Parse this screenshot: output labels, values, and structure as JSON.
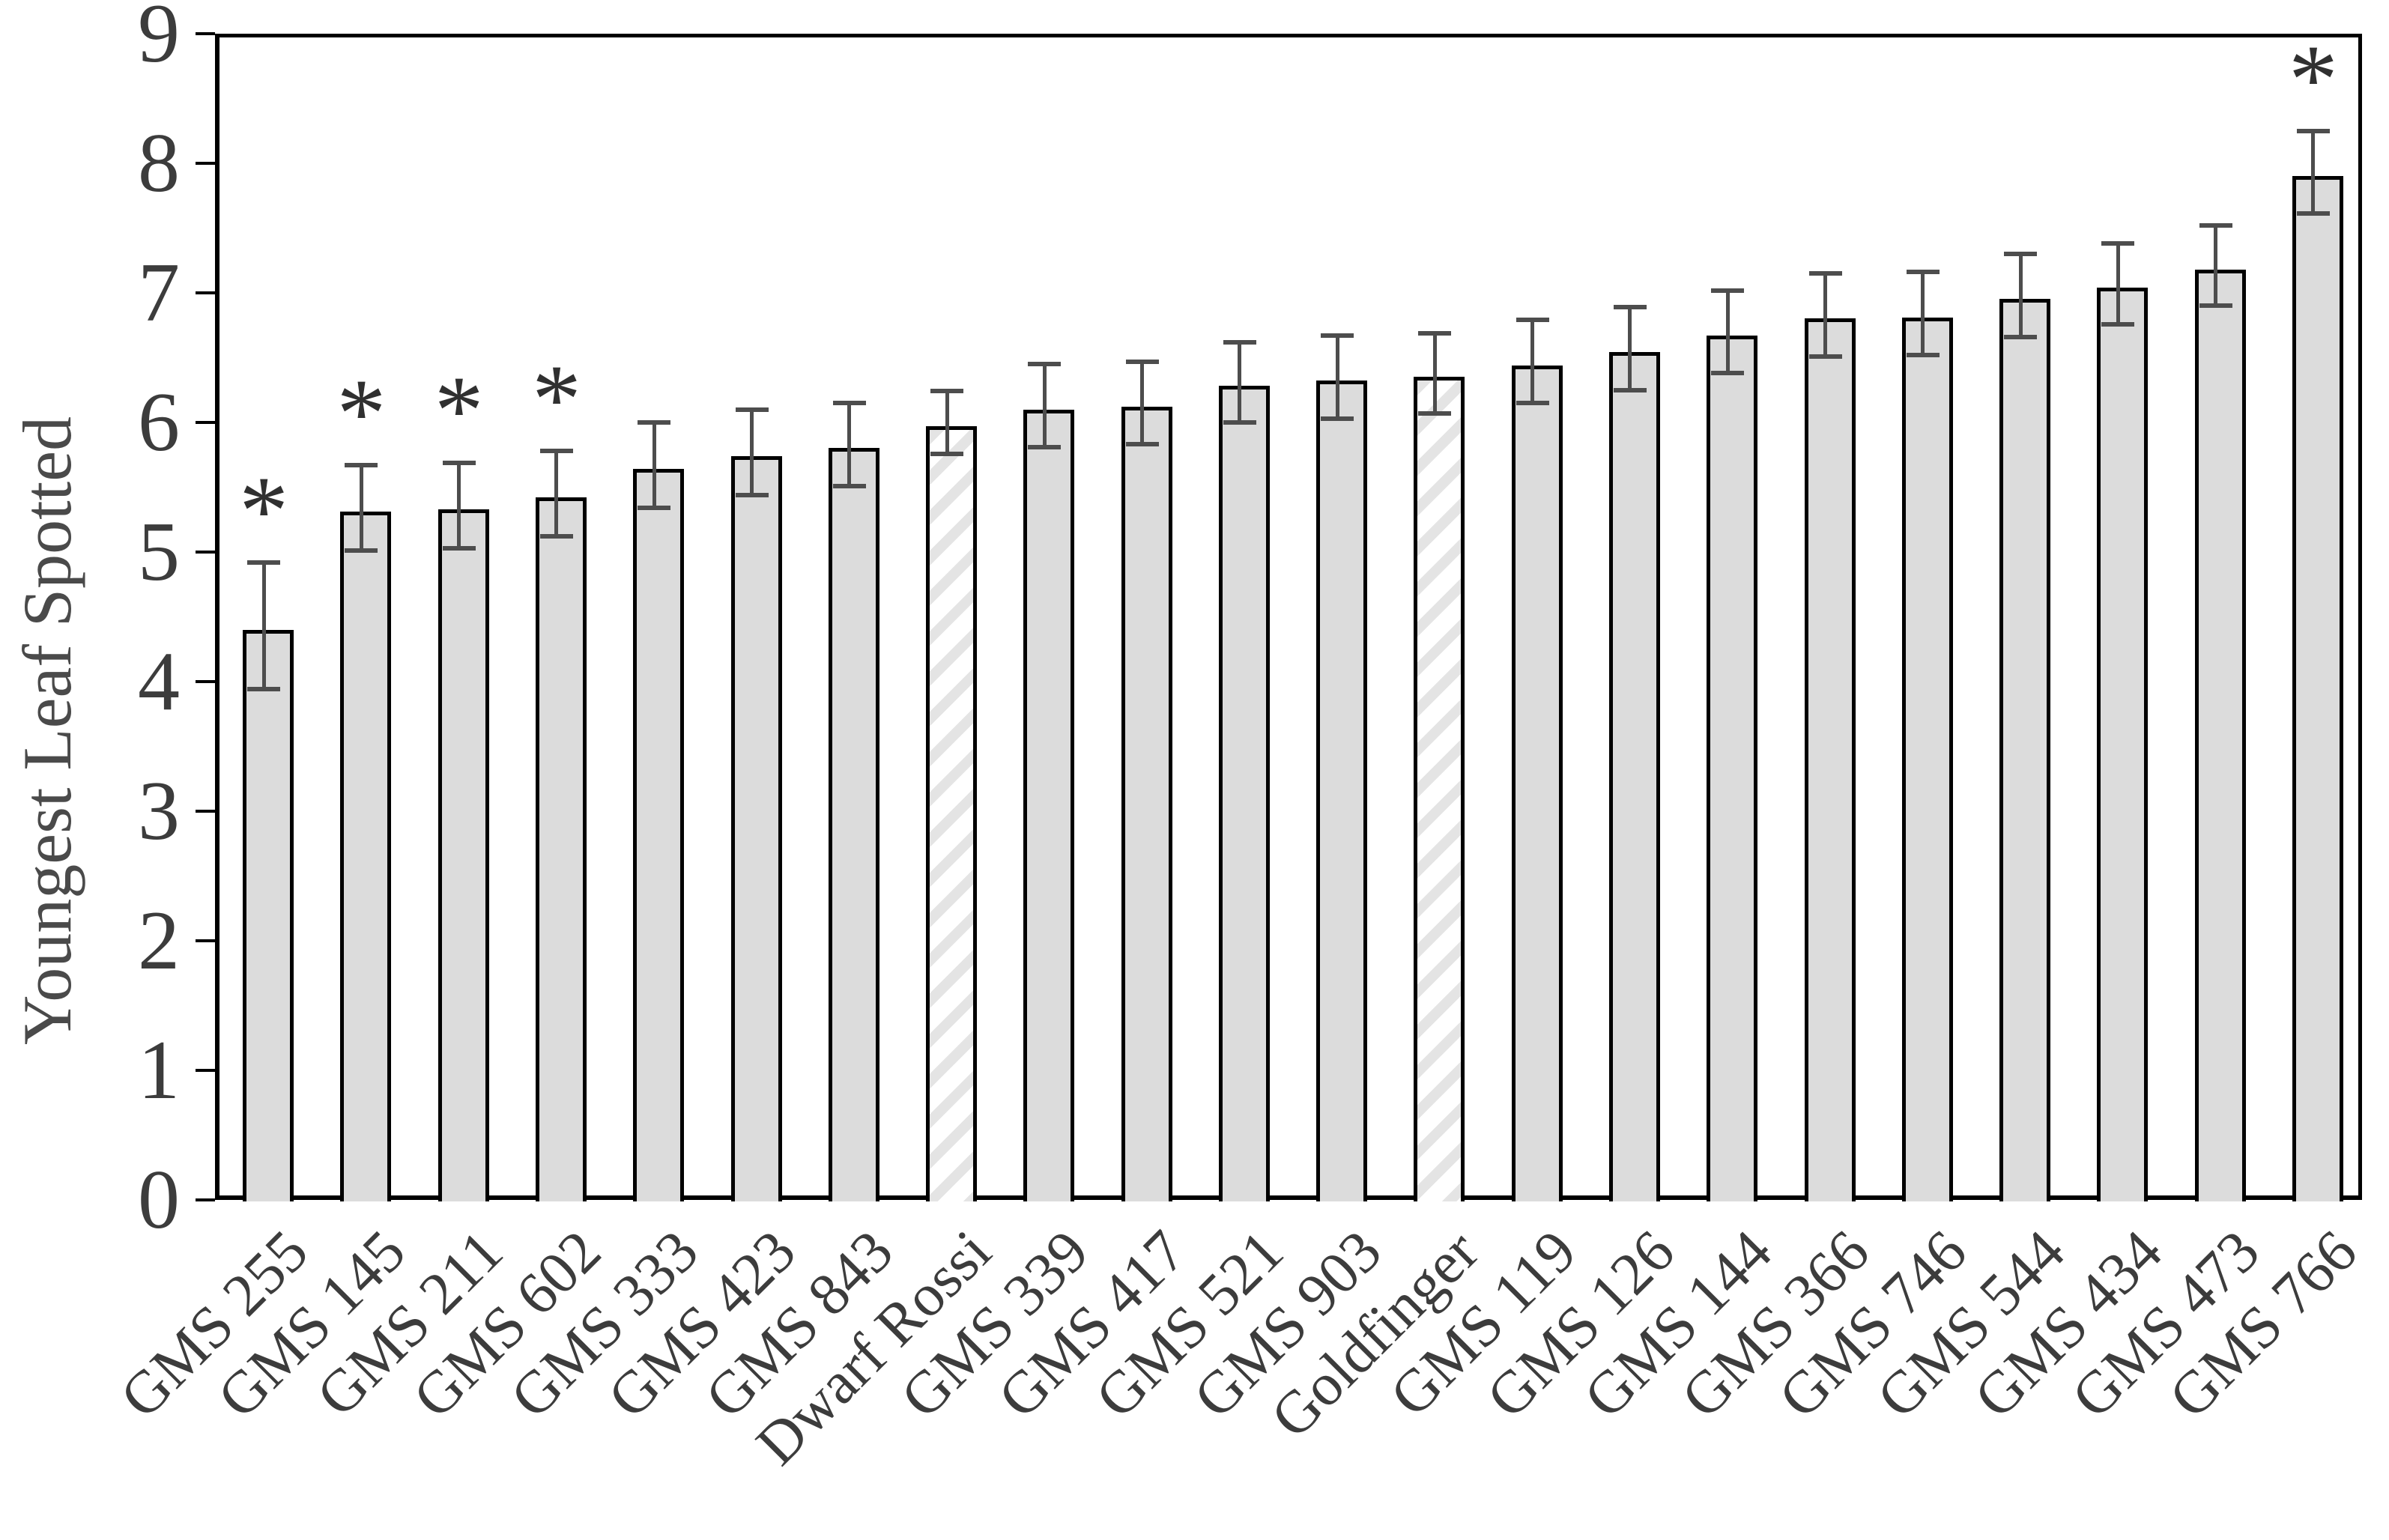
{
  "chart_data": {
    "type": "bar",
    "title": "",
    "ylabel": "Youngest Leaf Spotted",
    "xlabel": "",
    "ylim": [
      0,
      9
    ],
    "yticks": [
      0,
      1,
      2,
      3,
      4,
      5,
      6,
      7,
      8,
      9
    ],
    "grid": false,
    "legend": "none",
    "categories": [
      "GMS 255",
      "GMS 145",
      "GMS 211",
      "GMS 602",
      "GMS 333",
      "GMS 423",
      "GMS 843",
      "Dwarf Rossi",
      "GMS 339",
      "GMS 417",
      "GMS 521",
      "GMS 903",
      "Goldfinger",
      "GMS 119",
      "GMS 126",
      "GMS 144",
      "GMS 366",
      "GMS 746",
      "GMS 544",
      "GMS 434",
      "GMS 473",
      "GMS 766"
    ],
    "values": [
      4.43,
      5.34,
      5.36,
      5.45,
      5.67,
      5.77,
      5.83,
      6.0,
      6.13,
      6.15,
      6.31,
      6.35,
      6.38,
      6.47,
      6.57,
      6.7,
      6.83,
      6.84,
      6.98,
      7.07,
      7.21,
      7.93
    ],
    "errors": [
      0.49,
      0.33,
      0.33,
      0.33,
      0.33,
      0.33,
      0.32,
      0.24,
      0.32,
      0.32,
      0.31,
      0.32,
      0.31,
      0.32,
      0.32,
      0.32,
      0.32,
      0.32,
      0.32,
      0.31,
      0.31,
      0.32
    ],
    "significance_marker": "*",
    "significant_indices": [
      0,
      1,
      2,
      3,
      21
    ],
    "hatched_indices": [
      7,
      12
    ],
    "colors": {
      "bar_fill": "#dcdcdc",
      "bar_border": "#000000",
      "hatch_stripe": "#e4e4e4",
      "hatch_background": "#ffffff",
      "error_bar": "#4d4d4d",
      "axis_line": "#000000",
      "tick_label": "#3c3c3c",
      "axis_title": "#4a4a4a",
      "asterisk": "#303030",
      "background": "#ffffff"
    }
  }
}
